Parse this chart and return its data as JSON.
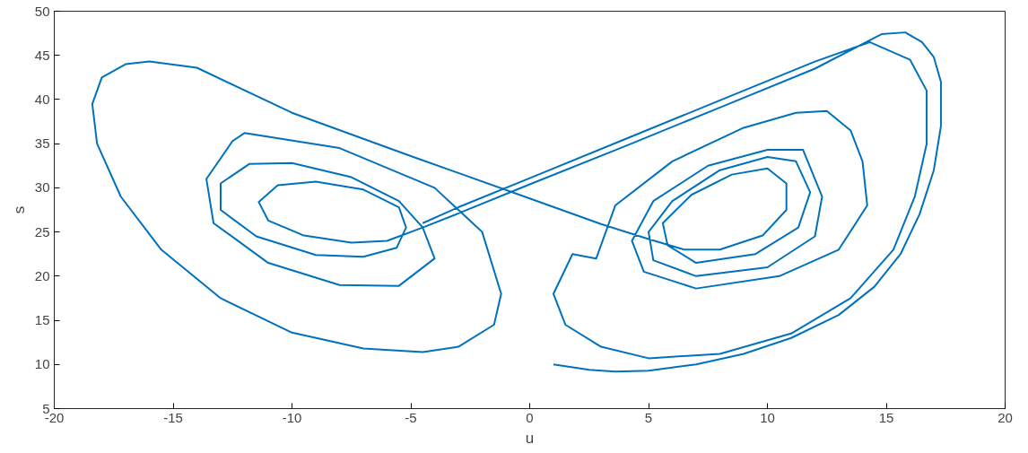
{
  "chart_data": {
    "type": "line",
    "xlabel": "u",
    "ylabel": "s",
    "xlim": [
      -20,
      20
    ],
    "ylim": [
      5,
      50
    ],
    "xticks": [
      -20,
      -15,
      -10,
      -5,
      0,
      5,
      10,
      15,
      20
    ],
    "yticks": [
      5,
      10,
      15,
      20,
      25,
      30,
      35,
      40,
      45,
      50
    ],
    "grid": false,
    "marker": "none",
    "line_style": "solid",
    "series": [
      {
        "color": "#0072bd",
        "x": [
          1,
          2.5,
          3.6,
          5,
          7,
          9,
          11,
          13,
          14.5,
          15.6,
          16.4,
          17,
          17.3,
          17.3,
          17,
          16.5,
          15.8,
          14.8,
          12,
          8,
          4,
          0,
          -3,
          -4.5,
          -6,
          -7.5,
          -9.5,
          -11,
          -11.4,
          -10.6,
          -9,
          -7,
          -5.5,
          -5.2,
          -5.6,
          -7,
          -9,
          -11.5,
          -13,
          -13,
          -11.8,
          -10,
          -7.5,
          -5.5,
          -4.5,
          -4,
          -5.5,
          -8,
          -11,
          -13.3,
          -13.6,
          -12.5,
          -12,
          -8,
          -4,
          -2,
          -1.2,
          -1.5,
          -3,
          -4.5,
          -7,
          -10,
          -13,
          -15.5,
          -17.2,
          -18.2,
          -18.4,
          -18,
          -17,
          -16,
          -14,
          -10,
          -5,
          0,
          3,
          5,
          6.5,
          8,
          9.8,
          10.8,
          10.8,
          10,
          8.5,
          6.8,
          5.6,
          5.8,
          7,
          9.5,
          11.3,
          11.8,
          11.2,
          10,
          8,
          6,
          5,
          5.2,
          7,
          10,
          12,
          12.3,
          11.5,
          10,
          7.5,
          5.2,
          4.3,
          4.8,
          7,
          10.5,
          13,
          14.2,
          14,
          13.5,
          12.5,
          11.2,
          9,
          6,
          3.6,
          2.8,
          1.8,
          1,
          1.5,
          3,
          5,
          8,
          11,
          13.5,
          15.3,
          16.2,
          16.7,
          16.7,
          16,
          14.3,
          12,
          8,
          4,
          0,
          -3,
          -4.5
        ],
        "values": [
          10,
          9.4,
          9.2,
          9.3,
          10,
          11.2,
          13,
          15.6,
          18.8,
          22.5,
          27,
          32,
          37,
          42,
          44.8,
          46.5,
          47.6,
          47.4,
          43.5,
          39.1,
          34.7,
          30.4,
          27.1,
          25.5,
          24,
          23.8,
          24.6,
          26.3,
          28.4,
          30.3,
          30.7,
          29.8,
          27.8,
          25.5,
          23.2,
          22.2,
          22.4,
          24.5,
          27.5,
          30.5,
          32.7,
          32.8,
          31.2,
          28.5,
          25.5,
          22,
          18.9,
          19,
          21.5,
          26,
          31,
          35.3,
          36.2,
          34.5,
          30,
          25,
          18,
          14.5,
          12,
          11.4,
          11.8,
          13.6,
          17.5,
          23,
          29,
          35,
          39.5,
          42.5,
          44,
          44.3,
          43.6,
          38.5,
          33.6,
          28.8,
          25.9,
          24.2,
          23,
          23,
          24.6,
          27.5,
          30.5,
          32.2,
          31.5,
          29.2,
          26,
          23.5,
          21.5,
          22.5,
          25.5,
          29.5,
          33,
          33.5,
          32,
          28.5,
          25,
          21.8,
          20,
          21,
          24.5,
          29,
          34.3,
          34.3,
          32.5,
          28.5,
          24,
          20.5,
          18.6,
          20,
          23,
          28,
          33,
          36.5,
          38.7,
          38.5,
          36.8,
          33,
          28,
          22,
          22.5,
          18,
          14.5,
          12,
          10.7,
          11.2,
          13.5,
          17.5,
          23,
          29,
          35,
          41,
          44.5,
          46.5,
          44.3,
          39.9,
          35.5,
          31.1,
          27.8,
          26
        ]
      }
    ]
  }
}
